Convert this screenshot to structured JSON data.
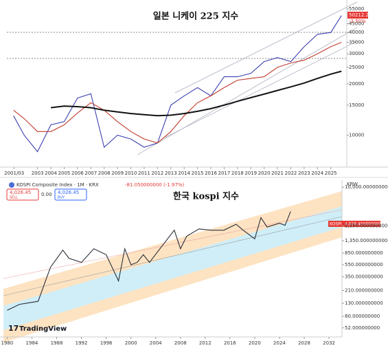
{
  "chart_data": [
    {
      "type": "line",
      "title": "일본 니케이 225 지수",
      "log_y": true,
      "x": [
        2001.2,
        2002,
        2003,
        2004,
        2005,
        2006,
        2007,
        2008,
        2009,
        2010,
        2011,
        2012,
        2013,
        2014,
        2015,
        2016,
        2017,
        2018,
        2019,
        2020,
        2021,
        2022,
        2023,
        2024,
        2025,
        2025.8
      ],
      "series": [
        {
          "color": "#3b3fb0",
          "values": [
            13000,
            10000,
            8000,
            11500,
            12000,
            16500,
            17500,
            8500,
            10000,
            9500,
            8500,
            9000,
            15000,
            17000,
            19000,
            17000,
            22000,
            22000,
            23000,
            27000,
            28500,
            27000,
            33000,
            39000,
            40000,
            50212
          ]
        },
        {
          "color": "#c0392b",
          "values": [
            14000,
            12500,
            10500,
            10500,
            11500,
            13500,
            15500,
            14000,
            12000,
            10500,
            9500,
            9000,
            10500,
            13000,
            15500,
            17000,
            19000,
            21000,
            21500,
            22000,
            25000,
            26500,
            27500,
            30000,
            33000,
            35000
          ]
        },
        {
          "color": "#111111",
          "values": [
            null,
            null,
            null,
            14500,
            14800,
            14700,
            14500,
            14000,
            13700,
            13400,
            13200,
            13000,
            13100,
            13400,
            13800,
            14300,
            15000,
            15800,
            16600,
            17400,
            18300,
            19200,
            20200,
            21500,
            22800,
            23700
          ]
        }
      ],
      "xlim": [
        2000.7,
        2026.2
      ],
      "xticks": [
        {
          "value": 2001.25,
          "label": "2001/03"
        },
        2003,
        2004,
        2005,
        2006,
        2007,
        2008,
        2009,
        2010,
        2011,
        2012,
        2013,
        2014,
        2015,
        2016,
        2017,
        2018,
        2019,
        2020,
        2021,
        2022,
        2023,
        2024,
        2025
      ],
      "ylim": [
        6500,
        62000
      ],
      "yticks": [
        55000,
        45000,
        40000,
        35000,
        30000,
        25000,
        20000,
        15000,
        10000
      ],
      "price_label": {
        "value": "50212.27",
        "change": "-2.50%"
      }
    },
    {
      "type": "line",
      "title": "한국 kospi 지수",
      "log_y": true,
      "header": {
        "symbol": "KOSPI Composite Index · 1M · KRX",
        "change": "-81.050000000 (-1.97%)",
        "sell_price": "4,026.45",
        "sell": "SELL",
        "spread": "0.00",
        "buy_price": "4,026.45",
        "buy": "BUY",
        "currency": "KRW"
      },
      "x": [
        1980,
        1982,
        1985,
        1987,
        1989,
        1990,
        1992,
        1994,
        1996,
        1998,
        1999,
        2000,
        2001,
        2002,
        2003,
        2005,
        2007,
        2008,
        2009,
        2011,
        2013,
        2015,
        2017,
        2018,
        2020,
        2021,
        2022,
        2024,
        2024.9,
        2025.8
      ],
      "series": [
        {
          "color": "#2a2e39",
          "values": [
            100,
            125,
            140,
            500,
            950,
            700,
            600,
            1000,
            800,
            300,
            1000,
            550,
            600,
            800,
            600,
            1100,
            2000,
            1000,
            1600,
            2100,
            2000,
            2000,
            2500,
            2050,
            1450,
            3200,
            2250,
            2600,
            2400,
            4026
          ]
        }
      ],
      "xlim": [
        1979.4,
        2034.1
      ],
      "xticks": [
        1980,
        1984,
        1988,
        1992,
        1996,
        2000,
        2004,
        2008,
        2012,
        2016,
        2020,
        2024,
        2028,
        2032
      ],
      "ylim": [
        37,
        13000
      ],
      "yticks": [
        {
          "value": 10000,
          "label": "10,000.000000000"
        },
        {
          "value": 2350,
          "label": "2,350.000000000"
        },
        {
          "value": 1350,
          "label": "1,350.000000000"
        },
        {
          "value": 850,
          "label": "850.000000000"
        },
        {
          "value": 550,
          "label": "550.000000000"
        },
        {
          "value": 350,
          "label": "350.000000000"
        },
        {
          "value": 210,
          "label": "210.000000000"
        },
        {
          "value": 130,
          "label": "130.000000000"
        },
        {
          "value": 80,
          "label": "80.000000000"
        },
        {
          "value": 52,
          "label": "52.000000000"
        }
      ],
      "price_label": {
        "symbol": "KOSPI",
        "value": "4,026.450000000"
      },
      "brand": "TradingView"
    }
  ]
}
